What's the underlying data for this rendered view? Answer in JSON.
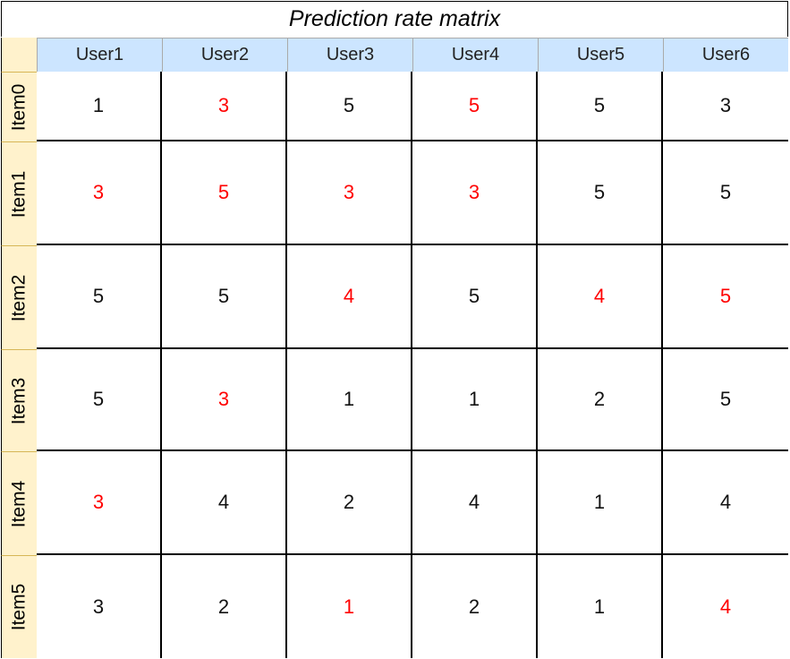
{
  "title": "Prediction rate matrix",
  "colors": {
    "highlight": "#ff0000",
    "normal": "#111111",
    "user_header_bg": "#cce5ff",
    "item_header_bg": "#fff2cc"
  },
  "users": [
    "User1",
    "User2",
    "User3",
    "User4",
    "User5",
    "User6"
  ],
  "items": [
    "Item0",
    "Item1",
    "Item2",
    "Item3",
    "Item4",
    "Item5"
  ],
  "matrix": [
    [
      {
        "v": "1",
        "h": false
      },
      {
        "v": "3",
        "h": true
      },
      {
        "v": "5",
        "h": false
      },
      {
        "v": "5",
        "h": true
      },
      {
        "v": "5",
        "h": false
      },
      {
        "v": "3",
        "h": false
      }
    ],
    [
      {
        "v": "3",
        "h": true
      },
      {
        "v": "5",
        "h": true
      },
      {
        "v": "3",
        "h": true
      },
      {
        "v": "3",
        "h": true
      },
      {
        "v": "5",
        "h": false
      },
      {
        "v": "5",
        "h": false
      }
    ],
    [
      {
        "v": "5",
        "h": false
      },
      {
        "v": "5",
        "h": false
      },
      {
        "v": "4",
        "h": true
      },
      {
        "v": "5",
        "h": false
      },
      {
        "v": "4",
        "h": true
      },
      {
        "v": "5",
        "h": true
      }
    ],
    [
      {
        "v": "5",
        "h": false
      },
      {
        "v": "3",
        "h": true
      },
      {
        "v": "1",
        "h": false
      },
      {
        "v": "1",
        "h": false
      },
      {
        "v": "2",
        "h": false
      },
      {
        "v": "5",
        "h": false
      }
    ],
    [
      {
        "v": "3",
        "h": true
      },
      {
        "v": "4",
        "h": false
      },
      {
        "v": "2",
        "h": false
      },
      {
        "v": "4",
        "h": false
      },
      {
        "v": "1",
        "h": false
      },
      {
        "v": "4",
        "h": false
      }
    ],
    [
      {
        "v": "3",
        "h": false
      },
      {
        "v": "2",
        "h": false
      },
      {
        "v": "1",
        "h": true
      },
      {
        "v": "2",
        "h": false
      },
      {
        "v": "1",
        "h": false
      },
      {
        "v": "4",
        "h": true
      }
    ]
  ]
}
